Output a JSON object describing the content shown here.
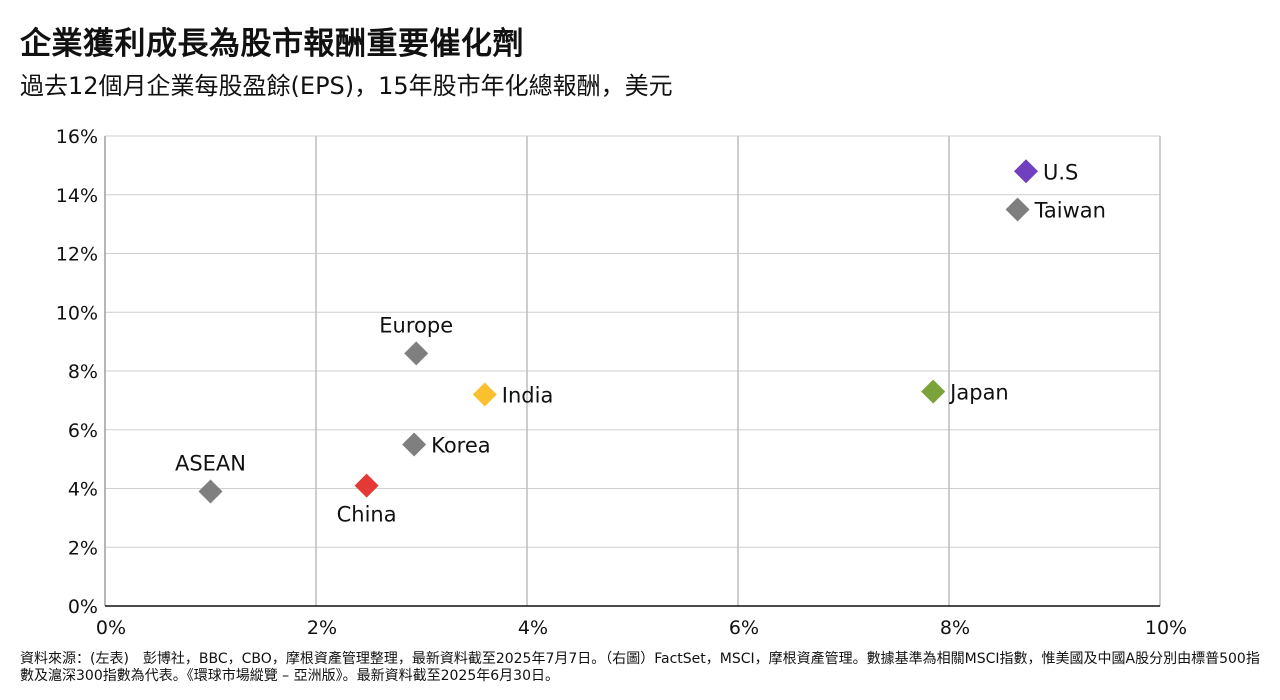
{
  "title": "企業獲利成長為股市報酬重要催化劑",
  "subtitle": "過去12個月企業每股盈餘(EPS)，15年股市年化總報酬，美元",
  "footnote": "資料來源：(左表)　彭博社，BBC，CBO，摩根資產管理整理，最新資料截至2025年7月7日。（右圖）FactSet，MSCI，摩根資產管理。數據基準為相關MSCI指數，惟美國及中國A股分別由標普500指數及滬深300指數為代表。《環球市場縱覽 – 亞洲版》。最新資料截至2025年6月30日。",
  "chart_data": {
    "type": "scatter",
    "title": "企業獲利成長為股市報酬重要催化劑",
    "subtitle": "過去12個月企業每股盈餘(EPS)，15年股市年化總報酬，美元",
    "xlabel": "",
    "ylabel": "",
    "xlim": [
      0,
      10
    ],
    "ylim": [
      0,
      16
    ],
    "x_ticks": [
      0,
      2,
      4,
      6,
      8,
      10
    ],
    "x_tick_labels": [
      "0%",
      "2%",
      "4%",
      "6%",
      "8%",
      "10%"
    ],
    "y_ticks": [
      0,
      2,
      4,
      6,
      8,
      10,
      12,
      14,
      16
    ],
    "y_tick_labels": [
      "0%",
      "2%",
      "4%",
      "6%",
      "8%",
      "10%",
      "12%",
      "14%",
      "16%"
    ],
    "grid": true,
    "marker": "diamond",
    "points": [
      {
        "label": "U.S",
        "x": 8.73,
        "y": 14.8,
        "color": "#7040C0",
        "label_pos": "right"
      },
      {
        "label": "Taiwan",
        "x": 8.65,
        "y": 13.5,
        "color": "#7F7F7F",
        "label_pos": "right"
      },
      {
        "label": "Europe",
        "x": 2.95,
        "y": 8.6,
        "color": "#7F7F7F",
        "label_pos": "above"
      },
      {
        "label": "India",
        "x": 3.6,
        "y": 7.2,
        "color": "#FBC02D",
        "label_pos": "right"
      },
      {
        "label": "Japan",
        "x": 7.85,
        "y": 7.3,
        "color": "#7CA23A",
        "label_pos": "right"
      },
      {
        "label": "Korea",
        "x": 2.93,
        "y": 5.5,
        "color": "#7F7F7F",
        "label_pos": "right"
      },
      {
        "label": "ASEAN",
        "x": 1.0,
        "y": 3.9,
        "color": "#7F7F7F",
        "label_pos": "above"
      },
      {
        "label": "China",
        "x": 2.48,
        "y": 4.1,
        "color": "#E53935",
        "label_pos": "below"
      }
    ]
  }
}
